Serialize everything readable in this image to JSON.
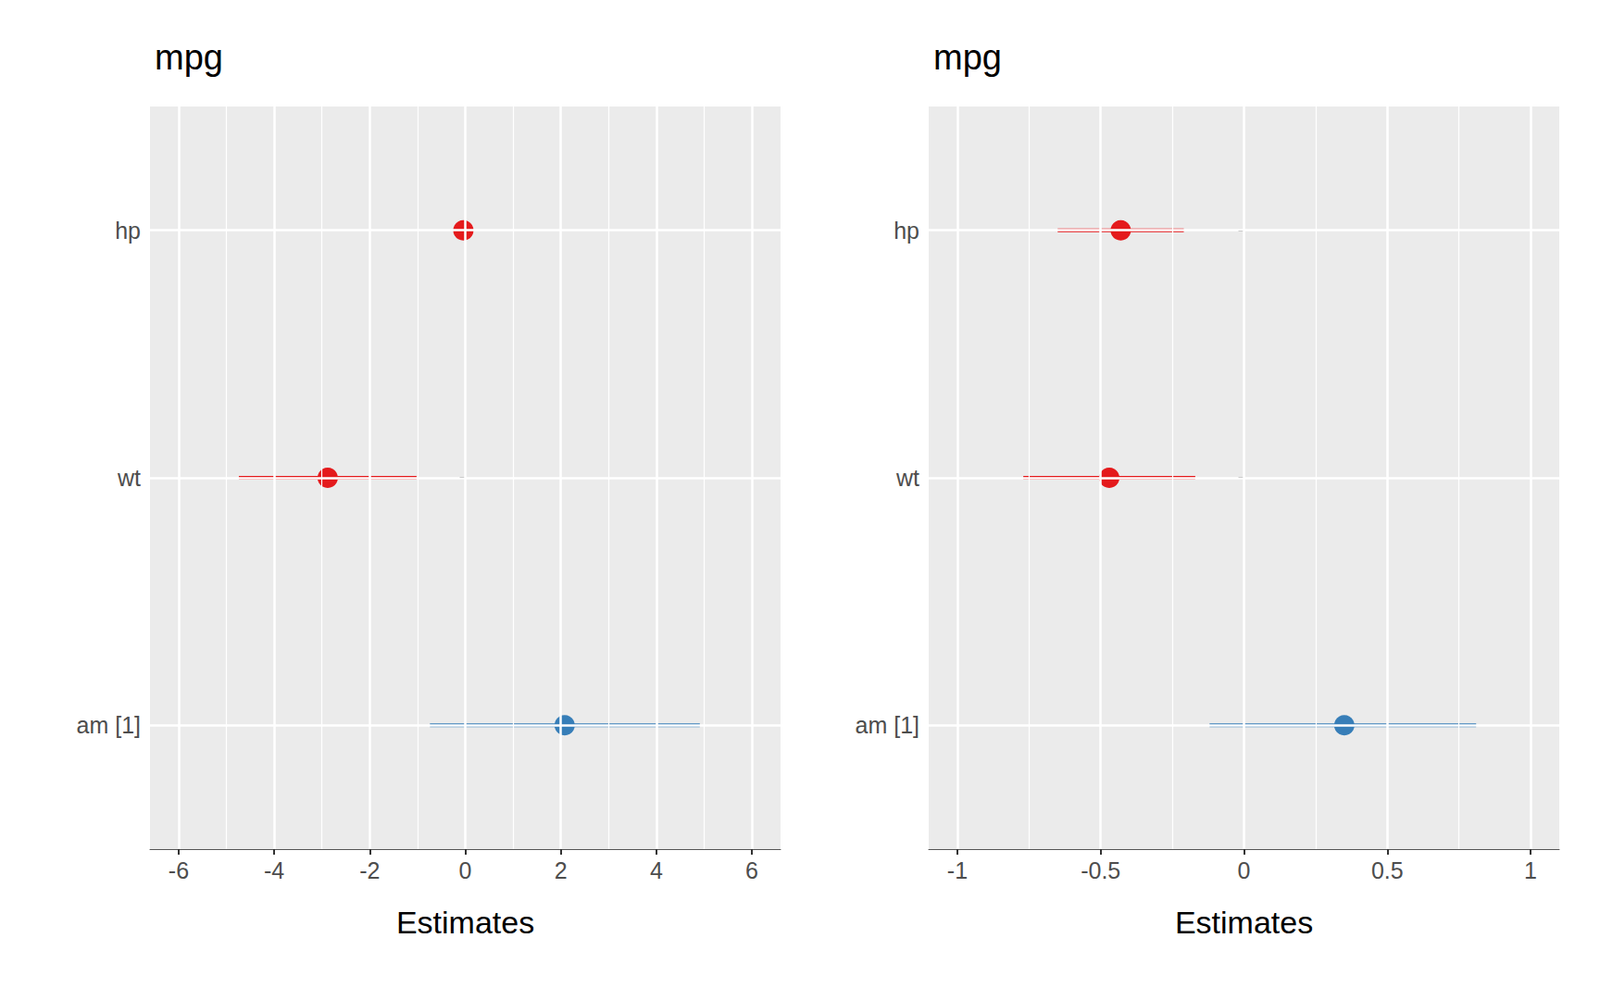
{
  "chart_data": [
    {
      "type": "forest",
      "title": "mpg",
      "x_label": "Estimates",
      "orientation": "horizontal",
      "grid": true,
      "categories": [
        "hp",
        "wt",
        "am [1]"
      ],
      "values": [
        -0.04,
        -2.88,
        2.08
      ],
      "ci_low": [
        -0.06,
        -4.74,
        -0.74
      ],
      "ci_high": [
        -0.02,
        -1.02,
        4.91
      ],
      "colors": [
        "#e41a1c",
        "#e41a1c",
        "#377eb8"
      ],
      "xlim": [
        -6.6,
        6.6
      ],
      "xticks": [
        -6,
        -4,
        -2,
        0,
        2,
        4,
        6
      ]
    },
    {
      "type": "forest",
      "title": "mpg",
      "x_label": "Estimates",
      "orientation": "horizontal",
      "grid": true,
      "categories": [
        "hp",
        "wt",
        "am [1]"
      ],
      "values": [
        -0.43,
        -0.47,
        0.35
      ],
      "ci_low": [
        -0.65,
        -0.77,
        -0.12
      ],
      "ci_high": [
        -0.21,
        -0.17,
        0.81
      ],
      "colors": [
        "#e41a1c",
        "#e41a1c",
        "#377eb8"
      ],
      "xlim": [
        -1.1,
        1.1
      ],
      "xticks": [
        -1,
        -0.5,
        0,
        0.5,
        1
      ]
    }
  ]
}
